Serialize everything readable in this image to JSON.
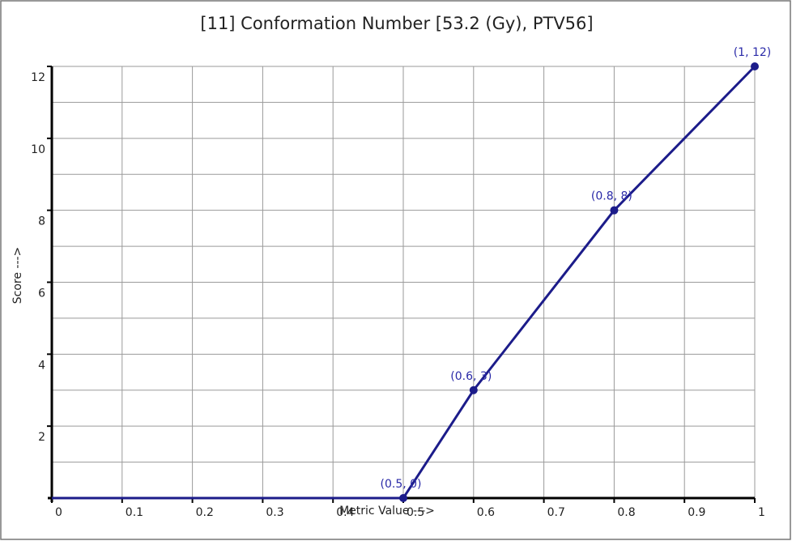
{
  "chart_data": {
    "type": "line",
    "title": "[11]  Conformation Number [53.2 (Gy), PTV56]",
    "x_label": "Metric Value --->",
    "y_label": "Score --->",
    "x": [
      0,
      0.5,
      0.6,
      0.8,
      1
    ],
    "series": [
      {
        "color": "#1c1c8a",
        "values": [
          0,
          0,
          3,
          8,
          12
        ],
        "value_labels": [
          null,
          "(0.5, 0)",
          "(0.6, 3)",
          "(0.8, 8)",
          "(1, 12)"
        ]
      }
    ],
    "xlim": [
      0,
      1
    ],
    "ylim": [
      0,
      12
    ],
    "xticks": [
      0,
      0.1,
      0.2,
      0.3,
      0.4,
      0.5,
      0.6,
      0.7,
      0.8,
      0.9,
      1
    ],
    "yticks": [
      2,
      4,
      6,
      8,
      10,
      12
    ],
    "y_minor_ticks": [
      1,
      3,
      5,
      7,
      9,
      11
    ],
    "grid": true
  }
}
